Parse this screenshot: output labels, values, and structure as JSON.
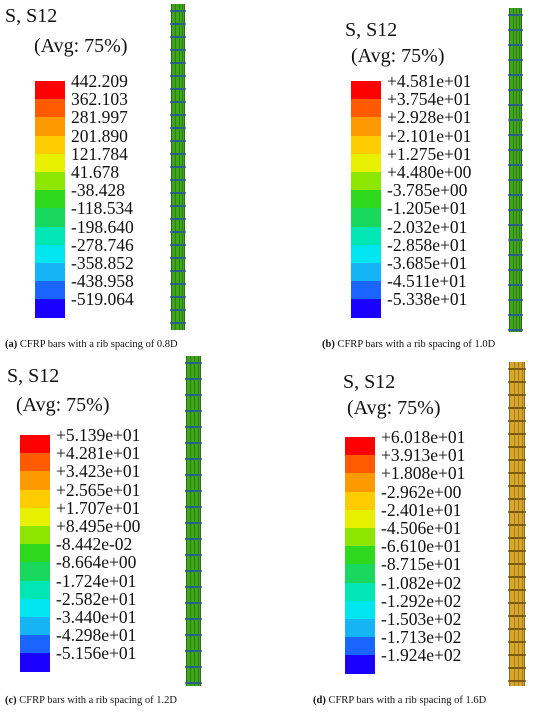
{
  "panels": [
    {
      "title1": "S, S12",
      "title2": "(Avg: 75%)",
      "values": [
        "442.209",
        "362.103",
        "281.997",
        "201.890",
        "121.784",
        "41.678",
        "-38.428",
        "-118.534",
        "-198.640",
        "-278.746",
        "-358.852",
        "-438.958",
        "-519.064"
      ],
      "caption_label": "(a)",
      "caption_text": " CFRP bars with a rib spacing of 0.8D",
      "bar_color": "#3fa61b",
      "rib_color": "#2a5f8a"
    },
    {
      "title1": "S, S12",
      "title2": "(Avg: 75%)",
      "values": [
        "+4.581e+01",
        "+3.754e+01",
        "+2.928e+01",
        "+2.101e+01",
        "+1.275e+01",
        "+4.480e+00",
        "-3.785e+00",
        "-1.205e+01",
        "-2.032e+01",
        "-2.858e+01",
        "-3.685e+01",
        "-4.511e+01",
        "-5.338e+01"
      ],
      "caption_label": "(b)",
      "caption_text": " CFRP bars with a rib spacing of 1.0D",
      "bar_color": "#3fa61b",
      "rib_color": "#2a5f8a"
    },
    {
      "title1": "S, S12",
      "title2": "(Avg: 75%)",
      "values": [
        "+5.139e+01",
        "+4.281e+01",
        "+3.423e+01",
        "+2.565e+01",
        "+1.707e+01",
        "+8.495e+00",
        "-8.442e-02",
        "-8.664e+00",
        "-1.724e+01",
        "-2.582e+01",
        "-3.440e+01",
        "-4.298e+01",
        "-5.156e+01"
      ],
      "caption_label": "(c)",
      "caption_text": " CFRP bars with a rib spacing of 1.2D",
      "bar_color": "#3fa61b",
      "rib_color": "#2a5f8a"
    },
    {
      "title1": "S, S12",
      "title2": "(Avg: 75%)",
      "values": [
        "+6.018e+01",
        "+3.913e+01",
        "+1.808e+01",
        "-2.962e+00",
        "-2.401e+01",
        "-4.506e+01",
        "-6.610e+01",
        "-8.715e+01",
        "-1.082e+02",
        "-1.292e+02",
        "-1.503e+02",
        "-1.713e+02",
        "-1.924e+02"
      ],
      "caption_label": "(d)",
      "caption_text": " CFRP bars with a rib spacing of 1.6D",
      "bar_color": "#d9a62c",
      "rib_color": "#7a5a14"
    }
  ],
  "legend_colors": [
    "#ff0000",
    "#ff5a00",
    "#ff9900",
    "#ffcc00",
    "#e6f000",
    "#8ce600",
    "#2ed81c",
    "#18d85e",
    "#00e6b4",
    "#00e6f0",
    "#14b4f5",
    "#1a64ff",
    "#1a00ff"
  ]
}
